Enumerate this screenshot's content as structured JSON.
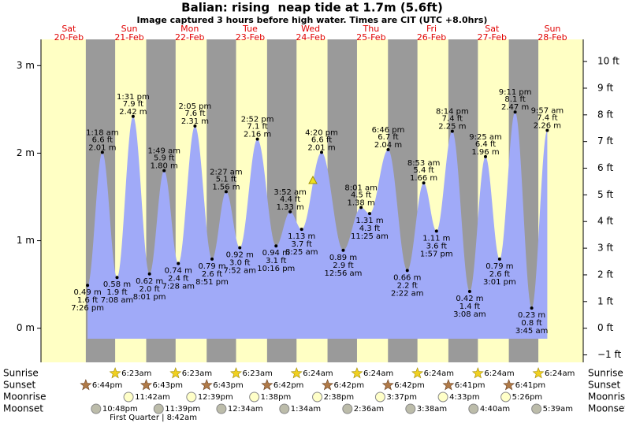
{
  "chart_data": {
    "type": "tide",
    "title": "Balian: rising  neap tide at 1.7m (5.6ft)",
    "subtitle": "Image captured 3 hours before high water. Times are CIT (UTC +8.0hrs)",
    "ylim": [
      -0.39,
      3.3
    ],
    "yticks": [
      {
        "value": 0,
        "label": "0 m"
      },
      {
        "value": 1,
        "label": "1 m"
      },
      {
        "value": 2,
        "label": "2 m"
      },
      {
        "value": 3,
        "label": "3 m"
      }
    ],
    "y2lim": [
      -1.28,
      10.83
    ],
    "y2ticks": [
      {
        "value": 10,
        "label": "10 ft"
      },
      {
        "value": 9,
        "label": "9 ft"
      },
      {
        "value": 8,
        "label": "8 ft"
      },
      {
        "value": 7,
        "label": "7 ft"
      },
      {
        "value": 6,
        "label": "6 ft"
      },
      {
        "value": 5,
        "label": "5 ft"
      },
      {
        "value": 4,
        "label": "4 ft"
      },
      {
        "value": 3,
        "label": "3 ft"
      },
      {
        "value": 2,
        "label": "2 ft"
      },
      {
        "value": 1,
        "label": "1 ft"
      },
      {
        "value": 0,
        "label": "0 ft"
      },
      {
        "value": -1,
        "label": "−1 ft"
      }
    ],
    "color": "#a0aaf8",
    "row_labels": [
      "Sunrise",
      "Sunset",
      "Moonrise",
      "Moonset"
    ],
    "days": [
      {
        "weekday": "Sat",
        "date": "20-Feb",
        "sunrise": null,
        "sunset": "6:44pm",
        "moonrise": null,
        "moonset": "10:48pm",
        "tides": [
          {
            "time": "7:26 pm",
            "value": 0.49,
            "label": "0.49 m",
            "ft": "1.6 ft"
          }
        ]
      },
      {
        "weekday": "Sun",
        "date": "21-Feb",
        "sunrise": "6:23am",
        "sunset": "6:43pm",
        "moonrise": "11:42am",
        "moonset": "11:39pm",
        "tides": [
          {
            "time": "1:18 am",
            "value": 2.01,
            "label": "2.01 m",
            "ft": "6.6 ft"
          },
          {
            "time": "7:08 am",
            "value": 0.58,
            "label": "0.58 m",
            "ft": "1.9 ft"
          },
          {
            "time": "1:31 pm",
            "value": 2.42,
            "label": "2.42 m",
            "ft": "7.9 ft"
          },
          {
            "time": "8:01 pm",
            "value": 0.62,
            "label": "0.62 m",
            "ft": "2.0 ft"
          }
        ]
      },
      {
        "weekday": "Mon",
        "date": "22-Feb",
        "sunrise": "6:23am",
        "sunset": "6:43pm",
        "moonrise": "12:39pm",
        "moonset": null,
        "moon_phase": "First Quarter | 8:42am",
        "tides": [
          {
            "time": "1:49 am",
            "value": 1.8,
            "label": "1.80 m",
            "ft": "5.9 ft"
          },
          {
            "time": "7:28 am",
            "value": 0.74,
            "label": "0.74 m",
            "ft": "2.4 ft"
          },
          {
            "time": "2:05 pm",
            "value": 2.31,
            "label": "2.31 m",
            "ft": "7.6 ft"
          },
          {
            "time": "8:51 pm",
            "value": 0.79,
            "label": "0.79 m",
            "ft": "2.6 ft"
          }
        ]
      },
      {
        "weekday": "Tue",
        "date": "23-Feb",
        "sunrise": "6:23am",
        "sunset": "6:42pm",
        "moonrise": "1:38pm",
        "moonset": "12:34am",
        "tides": [
          {
            "time": "2:27 am",
            "value": 1.56,
            "label": "1.56 m",
            "ft": "5.1 ft"
          },
          {
            "time": "7:52 am",
            "value": 0.92,
            "label": "0.92 m",
            "ft": "3.0 ft"
          },
          {
            "time": "2:52 pm",
            "value": 2.16,
            "label": "2.16 m",
            "ft": "7.1 ft"
          },
          {
            "time": "10:16 pm",
            "value": 0.94,
            "label": "0.94 m",
            "ft": "3.1 ft"
          }
        ]
      },
      {
        "weekday": "Wed",
        "date": "24-Feb",
        "sunrise": "6:24am",
        "sunset": "6:42pm",
        "moonrise": "2:38pm",
        "moonset": "1:34am",
        "tides": [
          {
            "time": "3:52 am",
            "value": 1.33,
            "label": "1.33 m",
            "ft": "4.4 ft"
          },
          {
            "time": "8:25 am",
            "value": 1.13,
            "label": "1.13 m",
            "ft": "3.7 ft"
          },
          {
            "time": "4:20 pm",
            "value": 2.01,
            "label": "2.01 m",
            "ft": "6.6 ft"
          }
        ]
      },
      {
        "weekday": "Thu",
        "date": "25-Feb",
        "sunrise": "6:24am",
        "sunset": "6:42pm",
        "moonrise": "3:37pm",
        "moonset": "2:36am",
        "tides": [
          {
            "time": "12:56 am",
            "value": 0.89,
            "label": "0.89 m",
            "ft": "2.9 ft"
          },
          {
            "time": "8:01 am",
            "value": 1.38,
            "label": "1.38 m",
            "ft": "4.5 ft"
          },
          {
            "time": "11:25 am",
            "value": 1.31,
            "label": "1.31 m",
            "ft": "4.3 ft"
          },
          {
            "time": "6:46 pm",
            "value": 2.04,
            "label": "2.04 m",
            "ft": "6.7 ft"
          }
        ]
      },
      {
        "weekday": "Fri",
        "date": "26-Feb",
        "sunrise": "6:24am",
        "sunset": "6:41pm",
        "moonrise": "4:33pm",
        "moonset": "3:38am",
        "tides": [
          {
            "time": "2:22 am",
            "value": 0.66,
            "label": "0.66 m",
            "ft": "2.2 ft"
          },
          {
            "time": "8:53 am",
            "value": 1.66,
            "label": "1.66 m",
            "ft": "5.4 ft"
          },
          {
            "time": "1:57 pm",
            "value": 1.11,
            "label": "1.11 m",
            "ft": "3.6 ft"
          },
          {
            "time": "8:14 pm",
            "value": 2.25,
            "label": "2.25 m",
            "ft": "7.4 ft"
          }
        ]
      },
      {
        "weekday": "Sat",
        "date": "27-Feb",
        "sunrise": "6:24am",
        "sunset": "6:41pm",
        "moonrise": "5:26pm",
        "moonset": "4:40am",
        "tides": [
          {
            "time": "3:08 am",
            "value": 0.42,
            "label": "0.42 m",
            "ft": "1.4 ft"
          },
          {
            "time": "9:25 am",
            "value": 1.96,
            "label": "1.96 m",
            "ft": "6.4 ft"
          },
          {
            "time": "3:01 pm",
            "value": 0.79,
            "label": "0.79 m",
            "ft": "2.6 ft"
          },
          {
            "time": "9:11 pm",
            "value": 2.47,
            "label": "2.47 m",
            "ft": "8.1 ft"
          }
        ]
      },
      {
        "weekday": "Sun",
        "date": "28-Feb",
        "sunrise": "6:24am",
        "sunset": null,
        "moonrise": null,
        "moonset": "5:39am",
        "tides": [
          {
            "time": "3:45 am",
            "value": 0.23,
            "label": "0.23 m",
            "ft": "0.8 ft"
          },
          {
            "time": "9:57 am",
            "value": 2.26,
            "label": "2.26 m",
            "ft": "7.4 ft"
          }
        ]
      }
    ]
  }
}
